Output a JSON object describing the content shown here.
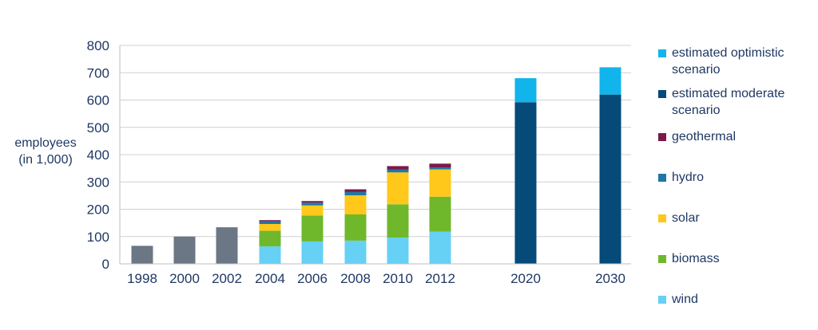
{
  "chart_data": {
    "type": "bar",
    "stacked": true,
    "ylabel_lines": [
      "employees",
      "(in 1,000)"
    ],
    "ylim": [
      0,
      800
    ],
    "yticks": [
      0,
      100,
      200,
      300,
      400,
      500,
      600,
      700,
      800
    ],
    "categories": [
      "1998",
      "2000",
      "2002",
      "2004",
      "2006",
      "2008",
      "2010",
      "2012",
      "2020",
      "2030"
    ],
    "grid": true,
    "legend_position": "right",
    "series": [
      {
        "key": "historic_total",
        "color": "#6b7785",
        "values": [
          66,
          100,
          134,
          null,
          null,
          null,
          null,
          null,
          null,
          null
        ]
      },
      {
        "key": "wind",
        "name": "wind",
        "color": "#66d0f5",
        "values": [
          null,
          null,
          null,
          64,
          82,
          85,
          96,
          118,
          null,
          null
        ]
      },
      {
        "key": "biomass",
        "name": "biomass",
        "color": "#6fb82c",
        "values": [
          null,
          null,
          null,
          57,
          95,
          96,
          122,
          128,
          null,
          null
        ]
      },
      {
        "key": "solar",
        "name": "solar",
        "color": "#ffc81a",
        "values": [
          null,
          null,
          null,
          25,
          37,
          70,
          117,
          100,
          null,
          null
        ]
      },
      {
        "key": "hydro",
        "name": "hydro",
        "color": "#1f78a4",
        "values": [
          null,
          null,
          null,
          10,
          10,
          12,
          11,
          7,
          null,
          null
        ]
      },
      {
        "key": "geothermal",
        "name": "geothermal",
        "color": "#7a1a4b",
        "values": [
          null,
          null,
          null,
          4,
          6,
          10,
          12,
          14,
          null,
          null
        ]
      },
      {
        "key": "moderate",
        "name": "estimated moderate scenario",
        "color": "#064a7a",
        "values": [
          null,
          null,
          null,
          null,
          null,
          null,
          null,
          null,
          592,
          620
        ]
      },
      {
        "key": "optimistic",
        "name": "estimated optimistic scenario",
        "color": "#12b4ec",
        "values": [
          null,
          null,
          null,
          null,
          null,
          null,
          null,
          null,
          88,
          100
        ]
      }
    ],
    "legend_order": [
      "optimistic",
      "moderate",
      "geothermal",
      "hydro",
      "solar",
      "biomass",
      "wind"
    ]
  }
}
